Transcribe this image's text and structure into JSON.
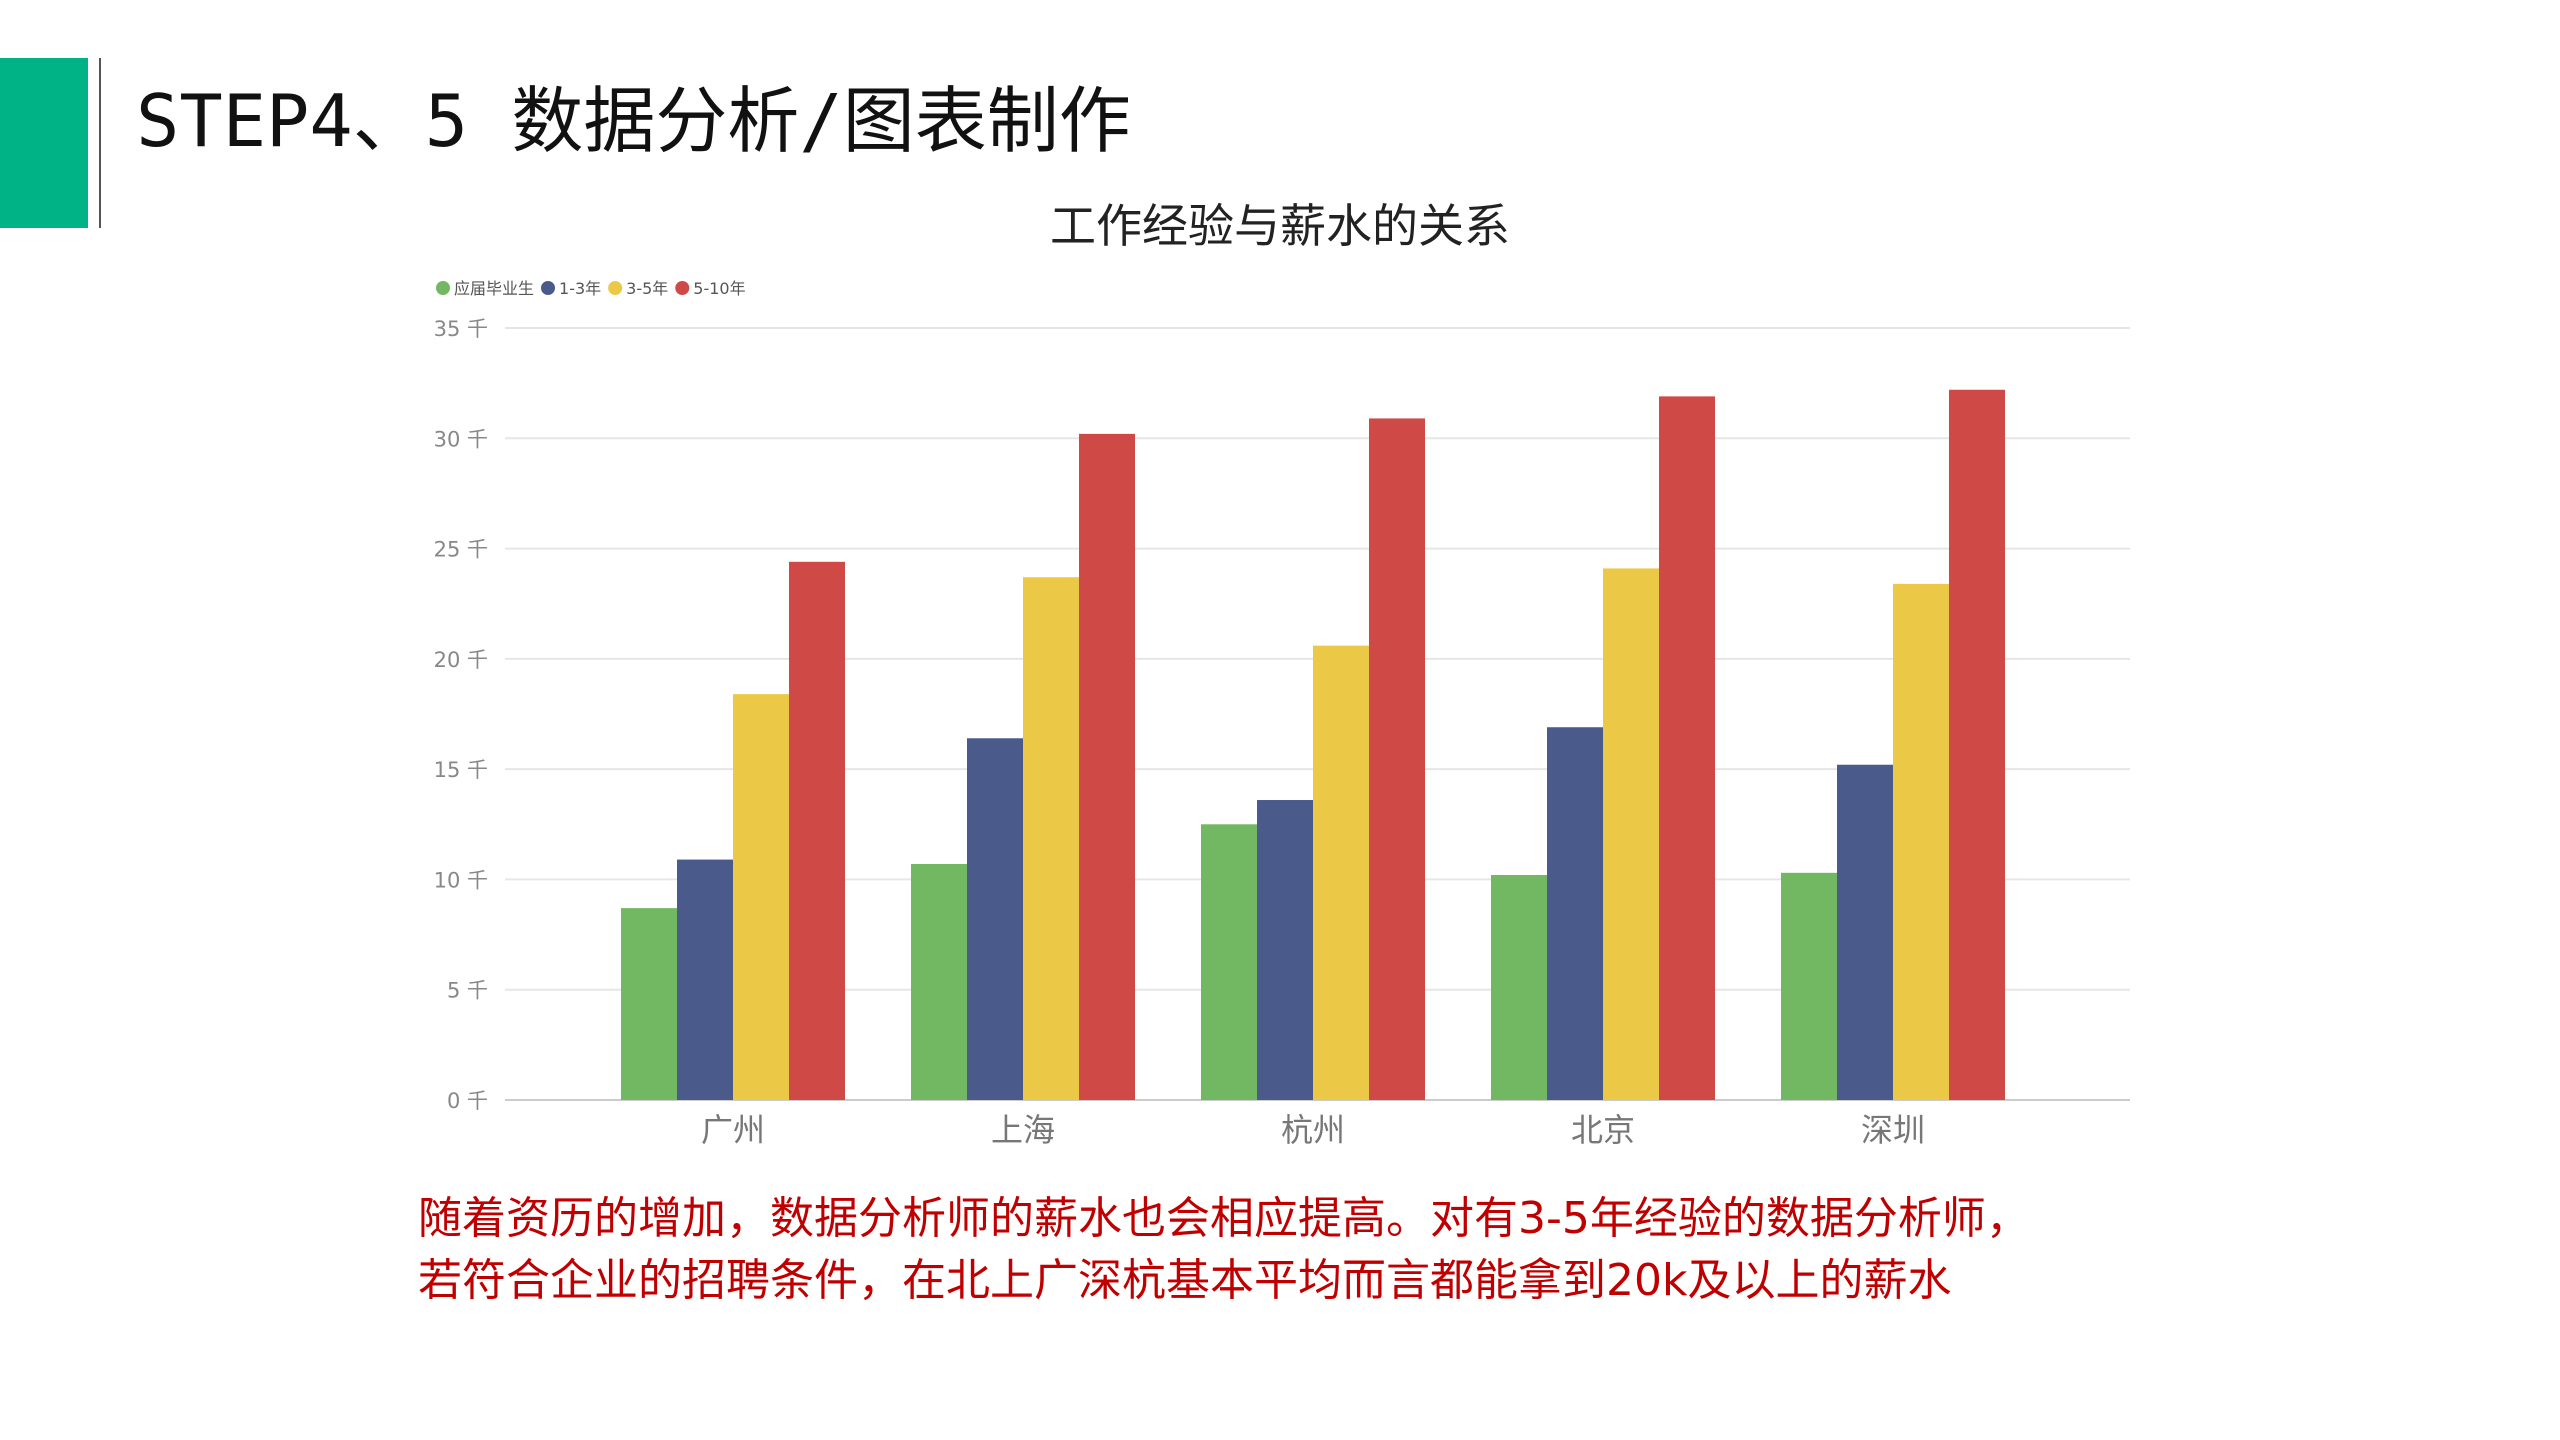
{
  "slide": {
    "title": "STEP4、5 数据分析/图表制作",
    "accent_color": "#00b386",
    "conclusion_lines": [
      "随着资历的增加，数据分析师的薪水也会相应提高。对有3-5年经验的数据分析师，",
      "若符合企业的招聘条件，在北上广深杭基本平均而言都能拿到20k及以上的薪水"
    ],
    "conclusion_color": "#c00000"
  },
  "chart_data": {
    "type": "bar",
    "title": "工作经验与薪水的关系",
    "categories": [
      "广州",
      "上海",
      "杭州",
      "北京",
      "深圳"
    ],
    "series": [
      {
        "name": "应届毕业生",
        "color": "#72b863",
        "values": [
          8.7,
          10.7,
          12.5,
          10.2,
          10.3
        ]
      },
      {
        "name": "1-3年",
        "color": "#4a5a8b",
        "values": [
          10.9,
          16.4,
          13.6,
          16.9,
          15.2
        ]
      },
      {
        "name": "3-5年",
        "color": "#ebc946",
        "values": [
          18.4,
          23.7,
          20.6,
          24.1,
          23.4
        ]
      },
      {
        "name": "5-10年",
        "color": "#cf4a46",
        "values": [
          24.4,
          30.2,
          30.9,
          31.9,
          32.2
        ]
      }
    ],
    "y_ticks": [
      "0 千",
      "5 千",
      "10 千",
      "15 千",
      "20 千",
      "25 千",
      "30 千",
      "35 千"
    ],
    "ylim": [
      0,
      35
    ],
    "xlabel": "",
    "ylabel": "",
    "legend_position": "top-left",
    "grid": true
  }
}
